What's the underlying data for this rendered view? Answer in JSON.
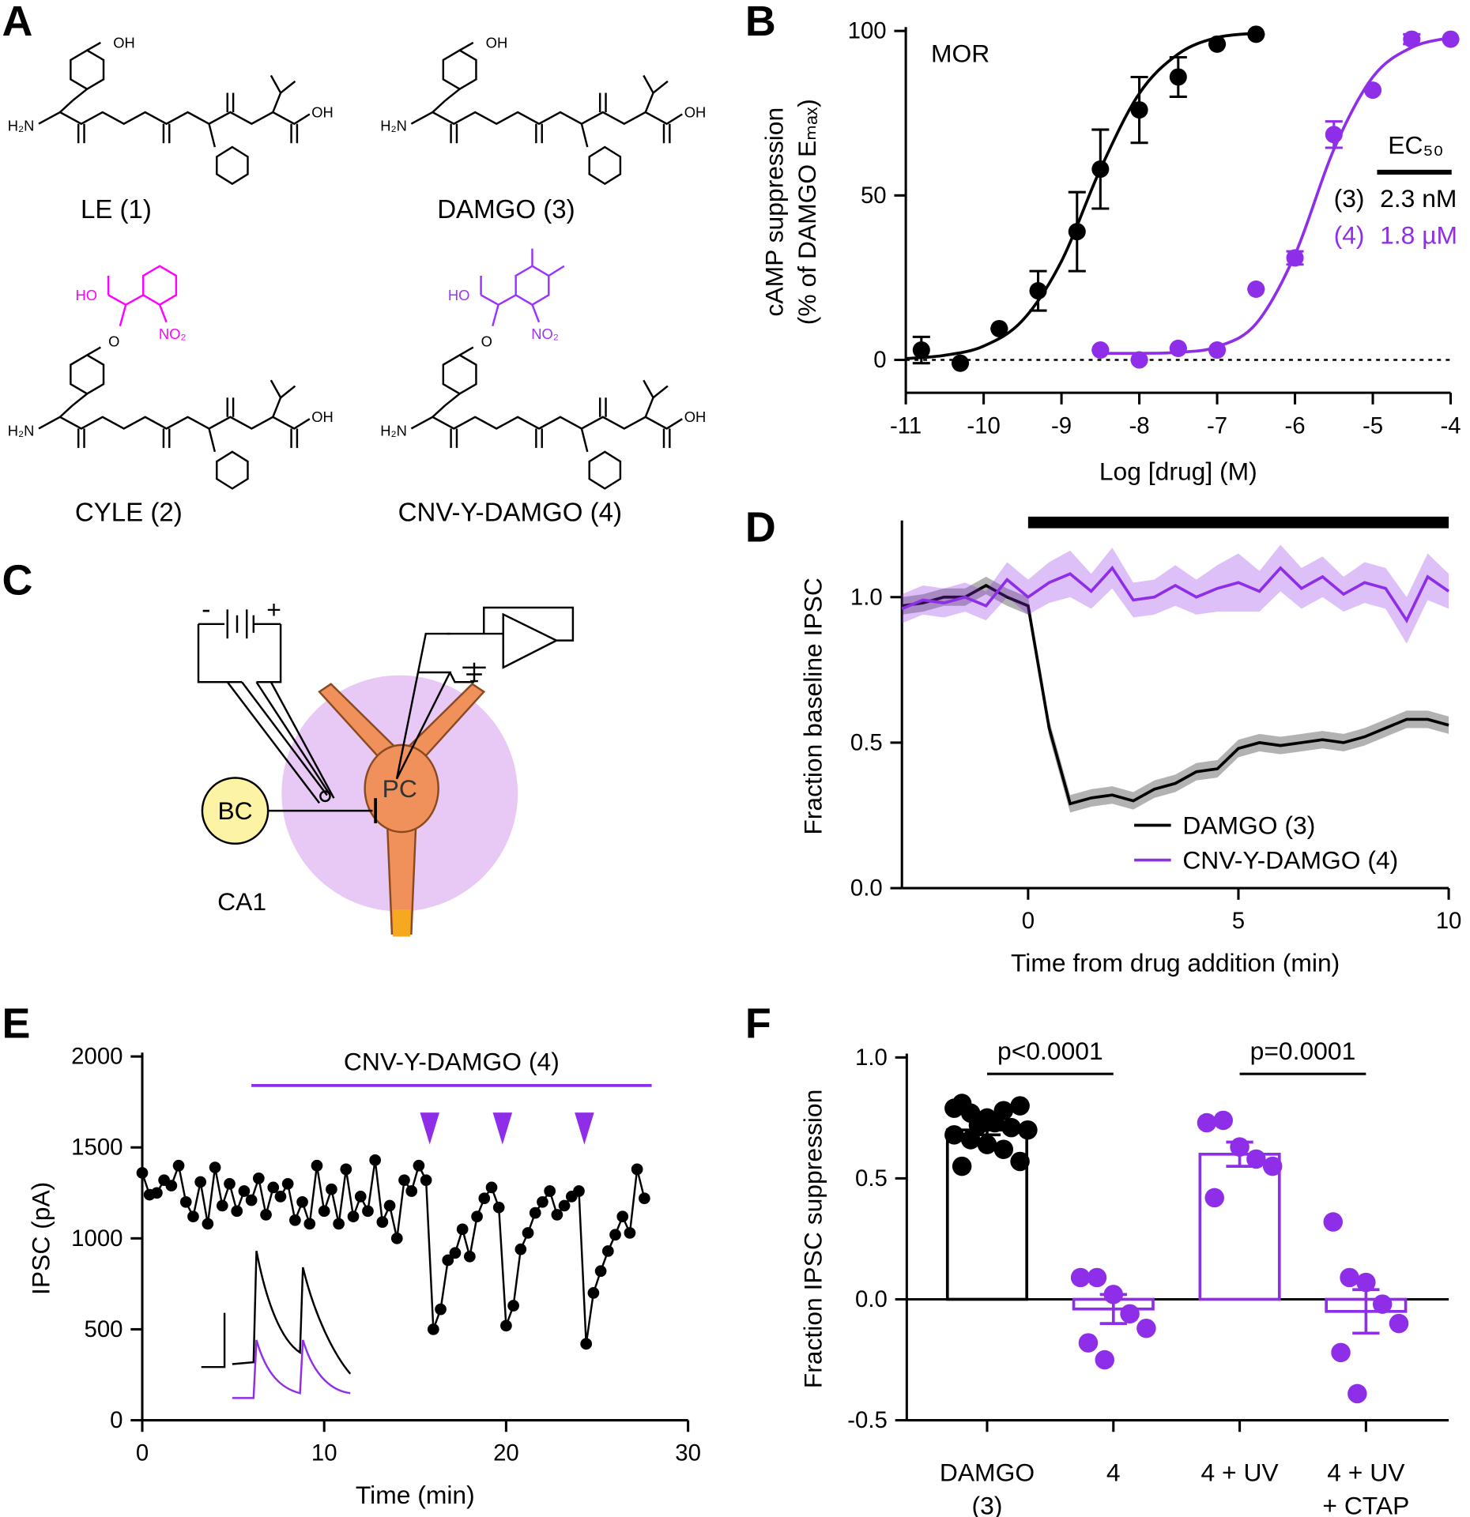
{
  "panels": [
    "A",
    "B",
    "C",
    "D",
    "E",
    "F"
  ],
  "structures": [
    {
      "name": "LE (1)",
      "atoms": [
        "OH",
        "H₂N",
        "OH"
      ]
    },
    {
      "name": "DAMGO (3)",
      "atoms": [
        "OH",
        "H₂N",
        "OH"
      ]
    },
    {
      "name": "CYLE (2)",
      "atoms": [
        "O",
        "H₂N",
        "OH",
        "HO",
        "NO₂"
      ]
    },
    {
      "name": "CNV-Y-DAMGO (4)",
      "atoms": [
        "O",
        "H₂N",
        "OH",
        "HO",
        "NO₂"
      ]
    }
  ],
  "diagram": {
    "labels": [
      "-",
      "+",
      "BC",
      "PC",
      "CA1"
    ]
  },
  "chart_data": [
    {
      "type": "scatter",
      "annotation": "MOR",
      "xlabel": "Log [drug] (M)",
      "ylabel": [
        "cAMP suppression",
        "(% of DAMGO Eₘₐₓ)"
      ],
      "xlim": [
        -11,
        -4
      ],
      "xticks": [
        -11,
        -10,
        -9,
        -8,
        -7,
        -6,
        -5,
        -4
      ],
      "ylim": [
        -10,
        100
      ],
      "yticks": [
        0,
        50,
        100
      ],
      "zero_line": true,
      "legend_title": "EC₅₀",
      "series": [
        {
          "name": "(3)",
          "label": "2.3 nM",
          "color": "#000000",
          "x": [
            -10.8,
            -10.3,
            -9.8,
            -9.3,
            -8.8,
            -8.5,
            -8,
            -7.5,
            -7,
            -6.5
          ],
          "values": [
            3,
            -1,
            9.5,
            21,
            39,
            58,
            76,
            86,
            96,
            99
          ],
          "errors": [
            4,
            0,
            0,
            6,
            12,
            12,
            10,
            6,
            0,
            0
          ],
          "fit_x": [
            -11,
            -10.5,
            -10,
            -9.5,
            -9,
            -8.5,
            -8,
            -7.5,
            -7,
            -6.5
          ],
          "fit": [
            0.4,
            1.4,
            4.2,
            12,
            30,
            58,
            81,
            93,
            98,
            99.3
          ]
        },
        {
          "name": "(4)",
          "label": "1.8 µM",
          "color": "#8f2ee8",
          "x": [
            -8.5,
            -8,
            -7.5,
            -7,
            -6.5,
            -6,
            -5.5,
            -5,
            -4.5,
            -4
          ],
          "values": [
            3,
            0,
            3.5,
            3,
            21.5,
            31,
            68.5,
            82,
            97.5,
            97.5
          ],
          "errors": [
            0,
            0,
            0,
            0,
            0,
            2,
            4,
            0,
            1.5,
            0
          ],
          "fit_x": [
            -8.5,
            -8,
            -7.5,
            -7,
            -6.5,
            -6,
            -5.5,
            -5,
            -4.5,
            -4
          ],
          "fit": [
            2,
            2,
            2.3,
            4,
            11,
            32,
            64,
            86,
            95,
            98
          ]
        }
      ]
    },
    {
      "type": "line",
      "xlabel": "Time from drug addition (min)",
      "ylabel": [
        "Fraction baseline IPSC"
      ],
      "xlim": [
        -3,
        10
      ],
      "xticks": [
        0,
        5,
        10
      ],
      "ylim": [
        0,
        1.25
      ],
      "yticks": [
        {
          "value": 0,
          "label": "0.0"
        },
        0.5,
        {
          "value": 1,
          "label": "1.0"
        }
      ],
      "drug_bar": [
        0,
        10
      ],
      "legend": "lower right",
      "x": [
        -3,
        -2.5,
        -2,
        -1.5,
        -1,
        -0.5,
        0,
        0.5,
        1,
        1.5,
        2,
        2.5,
        3,
        3.5,
        4,
        4.5,
        5,
        5.5,
        6,
        6.5,
        7,
        7.5,
        8,
        8.5,
        9,
        9.5,
        10
      ],
      "series": [
        {
          "name": "DAMGO (3)",
          "color": "#000000",
          "values": [
            0.97,
            0.98,
            1.0,
            1.0,
            1.04,
            1.0,
            0.97,
            0.55,
            0.29,
            0.31,
            0.32,
            0.3,
            0.34,
            0.36,
            0.4,
            0.41,
            0.48,
            0.5,
            0.49,
            0.5,
            0.51,
            0.5,
            0.52,
            0.55,
            0.58,
            0.58,
            0.56
          ],
          "errors": [
            0.03,
            0.03,
            0.03,
            0.03,
            0.03,
            0.03,
            0.03,
            0.03,
            0.03,
            0.03,
            0.03,
            0.03,
            0.03,
            0.03,
            0.03,
            0.03,
            0.03,
            0.03,
            0.03,
            0.03,
            0.03,
            0.03,
            0.03,
            0.03,
            0.03,
            0.03,
            0.03
          ]
        },
        {
          "name": "CNV-Y-DAMGO (4)",
          "color": "#8f2ee8",
          "values": [
            0.96,
            0.99,
            0.98,
            1.0,
            0.97,
            1.06,
            1.0,
            1.05,
            1.08,
            1.02,
            1.1,
            0.99,
            1.0,
            1.04,
            1.0,
            1.03,
            1.05,
            1.02,
            1.1,
            1.03,
            1.07,
            1.01,
            1.05,
            1.03,
            0.92,
            1.07,
            1.02
          ],
          "errors": [
            0.05,
            0.05,
            0.05,
            0.05,
            0.05,
            0.06,
            0.06,
            0.07,
            0.08,
            0.06,
            0.07,
            0.06,
            0.06,
            0.07,
            0.06,
            0.08,
            0.1,
            0.07,
            0.08,
            0.07,
            0.07,
            0.06,
            0.07,
            0.07,
            0.08,
            0.08,
            0.06
          ]
        }
      ]
    },
    {
      "type": "line",
      "markers": true,
      "xlabel": "Time (min)",
      "ylabel": [
        "IPSC (pA)"
      ],
      "xlim": [
        0,
        30
      ],
      "xticks": [
        0,
        10,
        20,
        30
      ],
      "ylim": [
        0,
        2000
      ],
      "yticks": [
        0,
        500,
        1000,
        1500,
        2000
      ],
      "bar_label": "CNV-Y-DAMGO (4)",
      "bar": [
        6,
        28
      ],
      "bar_color": "#8f2ee8",
      "uv_flashes": [
        15.8,
        19.8,
        24.3
      ],
      "x": [
        0,
        0.4,
        0.8,
        1.2,
        1.6,
        2,
        2.4,
        2.8,
        3.2,
        3.6,
        4,
        4.4,
        4.8,
        5.2,
        5.6,
        6,
        6.4,
        6.8,
        7.2,
        7.6,
        8,
        8.4,
        8.8,
        9.2,
        9.6,
        10,
        10.4,
        10.8,
        11.2,
        11.6,
        12,
        12.4,
        12.8,
        13.2,
        13.6,
        14,
        14.4,
        14.8,
        15.2,
        15.6,
        16,
        16.4,
        16.8,
        17.2,
        17.6,
        18,
        18.4,
        18.8,
        19.2,
        19.6,
        20,
        20.4,
        20.8,
        21.2,
        21.6,
        22,
        22.4,
        22.8,
        23.2,
        23.6,
        24,
        24.4,
        24.8,
        25.2,
        25.6,
        26,
        26.4,
        26.8,
        27.2,
        27.6
      ],
      "series": [
        {
          "color": "#000000",
          "values": [
            1360,
            1240,
            1250,
            1320,
            1290,
            1400,
            1200,
            1120,
            1310,
            1080,
            1390,
            1180,
            1300,
            1150,
            1260,
            1210,
            1330,
            1130,
            1280,
            1230,
            1300,
            1100,
            1200,
            1080,
            1400,
            1150,
            1270,
            1080,
            1380,
            1120,
            1230,
            1150,
            1430,
            1090,
            1180,
            1000,
            1320,
            1260,
            1400,
            1320,
            500,
            610,
            880,
            920,
            1050,
            900,
            1120,
            1220,
            1280,
            1170,
            520,
            630,
            940,
            1030,
            1140,
            1200,
            1260,
            1130,
            1180,
            1230,
            1260,
            420,
            700,
            820,
            930,
            1020,
            1120,
            1030,
            1380,
            1220
          ]
        }
      ]
    },
    {
      "type": "bar",
      "ylabel": [
        "Fraction IPSC suppression"
      ],
      "categories": [
        [
          "DAMGO",
          "(3)"
        ],
        [
          "4"
        ],
        [
          "4 + UV"
        ],
        [
          "4 + UV",
          "+ CTAP"
        ]
      ],
      "values": [
        0.7,
        -0.04,
        0.6,
        -0.05
      ],
      "errors": [
        0.02,
        0.06,
        0.05,
        0.09
      ],
      "colors": [
        "#000000",
        "#8f2ee8",
        "#8f2ee8",
        "#8f2ee8"
      ],
      "points": [
        [
          0.79,
          0.77,
          0.75,
          0.78,
          0.8,
          0.81,
          0.72,
          0.73,
          0.71,
          0.7,
          0.68,
          0.66,
          0.64,
          0.62,
          0.57,
          0.55
        ],
        [
          0.09,
          0.09,
          0.02,
          -0.06,
          -0.12,
          -0.18,
          -0.25
        ],
        [
          0.73,
          0.74,
          0.63,
          0.58,
          0.55,
          0.42
        ],
        [
          0.32,
          0.09,
          0.07,
          -0.02,
          -0.1,
          -0.22,
          -0.39
        ]
      ],
      "comparisons": [
        {
          "pair": [
            0,
            1
          ],
          "label": "p<0.0001"
        },
        {
          "pair": [
            2,
            3
          ],
          "label": "p=0.0001"
        }
      ],
      "ylim": [
        -0.5,
        1.0
      ],
      "yticks": [
        -0.5,
        {
          "value": 0,
          "label": "0.0"
        },
        0.5,
        {
          "value": 1,
          "label": "1.0"
        }
      ]
    }
  ]
}
